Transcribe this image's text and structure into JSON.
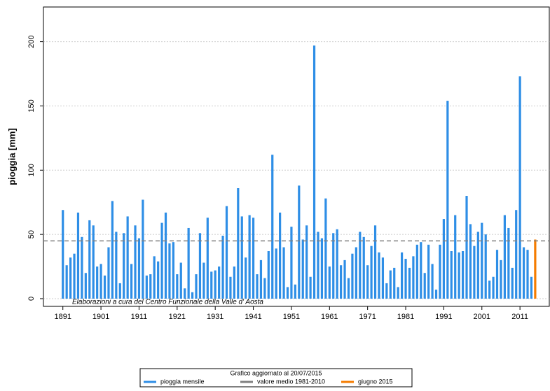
{
  "chart_data": {
    "type": "bar",
    "y_label": "pioggia [mm]",
    "annotation": "Elaborazioni a cura del Centro Funzionale della Valle d' Aosta",
    "legend_title": "Grafico aggiornato al 20/07/2015",
    "series": [
      {
        "name": "pioggia mensile",
        "color": "#2e8ee6",
        "x": [
          1891,
          1892,
          1893,
          1894,
          1895,
          1896,
          1897,
          1898,
          1899,
          1900,
          1901,
          1902,
          1903,
          1904,
          1905,
          1906,
          1907,
          1908,
          1909,
          1910,
          1911,
          1912,
          1913,
          1914,
          1915,
          1916,
          1917,
          1918,
          1919,
          1920,
          1921,
          1922,
          1923,
          1924,
          1925,
          1926,
          1927,
          1928,
          1929,
          1930,
          1931,
          1932,
          1933,
          1934,
          1935,
          1936,
          1937,
          1938,
          1939,
          1940,
          1941,
          1942,
          1943,
          1944,
          1945,
          1946,
          1947,
          1948,
          1949,
          1950,
          1951,
          1952,
          1953,
          1954,
          1955,
          1956,
          1957,
          1958,
          1959,
          1960,
          1961,
          1962,
          1963,
          1964,
          1965,
          1966,
          1967,
          1968,
          1969,
          1970,
          1971,
          1972,
          1973,
          1974,
          1975,
          1976,
          1977,
          1978,
          1979,
          1980,
          1981,
          1982,
          1983,
          1984,
          1985,
          1986,
          1987,
          1988,
          1989,
          1990,
          1991,
          1992,
          1993,
          1994,
          1995,
          1996,
          1997,
          1998,
          1999,
          2000,
          2001,
          2002,
          2003,
          2004,
          2005,
          2006,
          2007,
          2008,
          2009,
          2010,
          2011,
          2012,
          2013,
          2014
        ],
        "values": [
          69,
          26,
          32,
          35,
          67,
          48,
          20,
          61,
          57,
          25,
          27,
          18,
          40,
          76,
          52,
          12,
          51,
          64,
          27,
          57,
          47,
          77,
          18,
          19,
          33,
          29,
          59,
          67,
          43,
          44,
          19,
          28,
          8,
          55,
          5,
          19,
          51,
          28,
          63,
          21,
          22,
          25,
          49,
          72,
          17,
          25,
          86,
          64,
          32,
          65,
          63,
          19,
          30,
          16,
          37,
          112,
          39,
          67,
          40,
          9,
          56,
          11,
          88,
          46,
          57,
          17,
          197,
          52,
          47,
          78,
          25,
          51,
          54,
          26,
          30,
          16,
          35,
          40,
          52,
          48,
          26,
          41,
          57,
          36,
          32,
          12,
          22,
          24,
          9,
          36,
          31,
          24,
          33,
          42,
          44,
          20,
          42,
          27,
          7,
          42,
          62,
          154,
          37,
          65,
          36,
          37,
          80,
          58,
          41,
          52,
          59,
          50,
          14,
          17,
          38,
          30,
          65,
          55,
          24,
          69,
          173,
          40,
          38,
          17
        ]
      },
      {
        "name": "giugno 2015",
        "color": "#f57c00",
        "x": [
          2015
        ],
        "values": [
          46
        ]
      }
    ],
    "mean_line": {
      "name": "valore medio 1981-2010",
      "value": 45,
      "color": "#808080"
    },
    "xlim": [
      1885.9,
      2018.7
    ],
    "xticks": [
      1891,
      1901,
      1911,
      1921,
      1931,
      1941,
      1951,
      1961,
      1971,
      1981,
      1991,
      2001,
      2011
    ],
    "ylim": [
      -6,
      227
    ],
    "yticks": [
      0,
      50,
      100,
      150,
      200
    ],
    "grid": true
  }
}
